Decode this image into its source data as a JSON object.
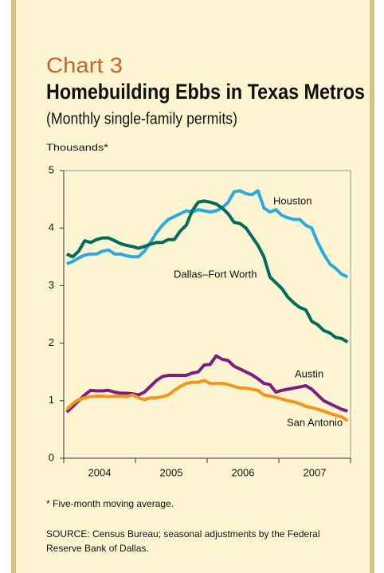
{
  "chart_data": {
    "type": "line",
    "kicker": "Chart 3",
    "title": "Homebuilding Ebbs in Texas Metros",
    "subtitle": "(Monthly single-family permits)",
    "y_label": "Thousands*",
    "categories": [
      null,
      null,
      null,
      null,
      null,
      "2004",
      null,
      null,
      null,
      null,
      null,
      null,
      null,
      null,
      null,
      null,
      null,
      "2005",
      null,
      null,
      null,
      null,
      null,
      null,
      null,
      null,
      null,
      null,
      null,
      "2006",
      null,
      null,
      null,
      null,
      null,
      null,
      null,
      null,
      null,
      null,
      null,
      "2007",
      null,
      null,
      null,
      null,
      null,
      null
    ],
    "series": [
      {
        "name": "Houston",
        "color": "#29abe2",
        "values": [
          3.38,
          3.42,
          3.48,
          3.53,
          3.55,
          3.55,
          3.6,
          3.62,
          3.55,
          3.55,
          3.52,
          3.5,
          3.5,
          3.6,
          3.75,
          3.92,
          4.05,
          4.15,
          4.2,
          4.25,
          4.3,
          4.28,
          4.32,
          4.3,
          4.28,
          4.3,
          4.35,
          4.45,
          4.63,
          4.65,
          4.6,
          4.58,
          4.65,
          4.35,
          4.28,
          4.32,
          4.22,
          4.18,
          4.15,
          4.15,
          4.05,
          4.0,
          3.75,
          3.55,
          3.38,
          3.3,
          3.2,
          3.15
        ]
      },
      {
        "name": "Dallas–Fort Worth",
        "color": "#006b5f",
        "values": [
          3.55,
          3.5,
          3.6,
          3.78,
          3.75,
          3.8,
          3.83,
          3.83,
          3.78,
          3.73,
          3.7,
          3.68,
          3.65,
          3.68,
          3.72,
          3.75,
          3.75,
          3.8,
          3.8,
          3.95,
          4.05,
          4.3,
          4.45,
          4.47,
          4.45,
          4.42,
          4.35,
          4.25,
          4.1,
          4.08,
          4.0,
          3.85,
          3.7,
          3.5,
          3.15,
          3.05,
          2.95,
          2.8,
          2.7,
          2.62,
          2.58,
          2.38,
          2.32,
          2.22,
          2.18,
          2.1,
          2.08,
          2.02
        ]
      },
      {
        "name": "Austin",
        "color": "#7d1f80",
        "values": [
          0.8,
          0.9,
          1.0,
          1.1,
          1.18,
          1.17,
          1.17,
          1.18,
          1.15,
          1.13,
          1.13,
          1.12,
          1.1,
          1.15,
          1.25,
          1.35,
          1.42,
          1.44,
          1.44,
          1.44,
          1.44,
          1.48,
          1.5,
          1.62,
          1.63,
          1.78,
          1.72,
          1.7,
          1.6,
          1.55,
          1.5,
          1.45,
          1.38,
          1.3,
          1.28,
          1.15,
          1.18,
          1.2,
          1.22,
          1.24,
          1.26,
          1.2,
          1.1,
          1.0,
          0.95,
          0.9,
          0.85,
          0.82
        ]
      },
      {
        "name": "San Antonio",
        "color": "#f7941d",
        "values": [
          0.85,
          0.95,
          1.02,
          1.05,
          1.07,
          1.08,
          1.08,
          1.07,
          1.08,
          1.08,
          1.07,
          1.1,
          1.05,
          1.02,
          1.05,
          1.05,
          1.07,
          1.1,
          1.18,
          1.25,
          1.3,
          1.32,
          1.32,
          1.35,
          1.3,
          1.3,
          1.3,
          1.28,
          1.25,
          1.22,
          1.22,
          1.2,
          1.18,
          1.1,
          1.08,
          1.06,
          1.03,
          1.0,
          0.98,
          0.95,
          0.9,
          0.88,
          0.85,
          0.82,
          0.78,
          0.75,
          0.72,
          0.65
        ]
      }
    ],
    "ylim": [
      0,
      5
    ],
    "yticks": [
      0,
      1,
      2,
      3,
      4,
      5
    ],
    "footnote": "* Five-month moving average.",
    "source": "SOURCE: Census Bureau; seasonal adjustments by the Federal Reserve Bank of Dallas."
  }
}
